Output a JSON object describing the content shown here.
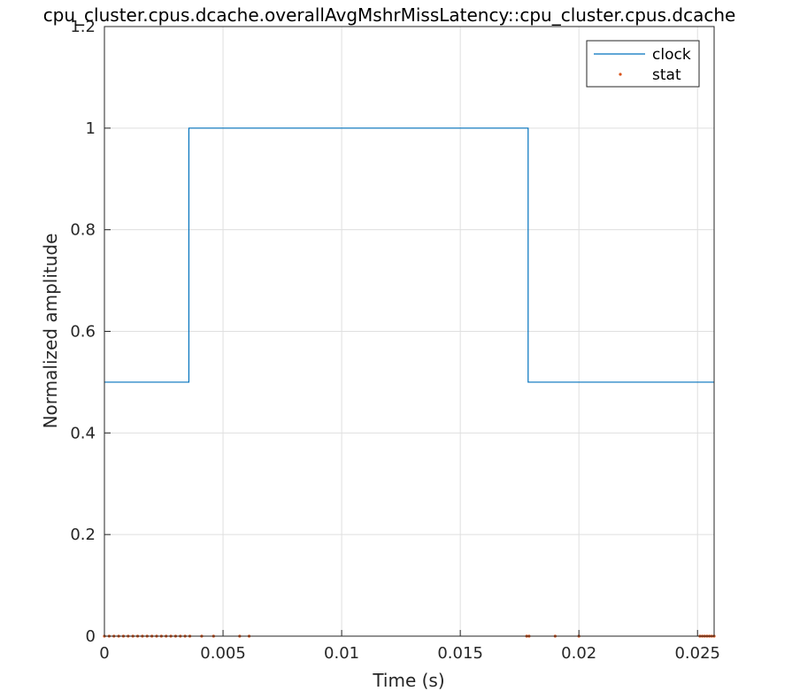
{
  "chart_data": {
    "type": "line",
    "title": "cpu_cluster.cpus.dcache.overallAvgMshrMissLatency::cpu_cluster.cpus.dcache",
    "xlabel": "Time (s)",
    "ylabel": "Normalized amplitude",
    "xlim": [
      0,
      0.0257
    ],
    "ylim": [
      0,
      1.2
    ],
    "xticks": [
      0,
      0.005,
      0.01,
      0.015,
      0.02,
      0.025
    ],
    "xtick_labels": [
      "0",
      "0.005",
      "0.01",
      "0.015",
      "0.02",
      "0.025"
    ],
    "yticks": [
      0,
      0.2,
      0.4,
      0.6,
      0.8,
      1,
      1.2
    ],
    "ytick_labels": [
      "0",
      "0.2",
      "0.4",
      "0.6",
      "0.8",
      "1",
      "1.2"
    ],
    "grid": true,
    "legend_position": "top-right",
    "series": [
      {
        "name": "clock",
        "style": "line",
        "color": "#0072BD",
        "x": [
          0,
          0.00356,
          0.00356,
          0.01786,
          0.01786,
          0.0257
        ],
        "y": [
          0.5,
          0.5,
          1,
          1,
          0.5,
          0.5
        ]
      },
      {
        "name": "stat",
        "style": "marker",
        "color": "#D95319",
        "x": [
          0,
          0.0002,
          0.0004,
          0.0006,
          0.0008,
          0.001,
          0.0012,
          0.0014,
          0.0016,
          0.0018,
          0.002,
          0.0022,
          0.0024,
          0.0026,
          0.0028,
          0.003,
          0.0032,
          0.0034,
          0.0036,
          0.0041,
          0.0046,
          0.0057,
          0.0061,
          0.0178,
          0.0179,
          0.019,
          0.02,
          0.0251,
          0.0252,
          0.0253,
          0.0254,
          0.0255,
          0.0256,
          0.0257
        ],
        "y": [
          0,
          0,
          0,
          0,
          0,
          0,
          0,
          0,
          0,
          0,
          0,
          0,
          0,
          0,
          0,
          0,
          0,
          0,
          0,
          0,
          0,
          0,
          0,
          0,
          0,
          0,
          0,
          0,
          0,
          0,
          0,
          0,
          0,
          0
        ]
      }
    ]
  }
}
